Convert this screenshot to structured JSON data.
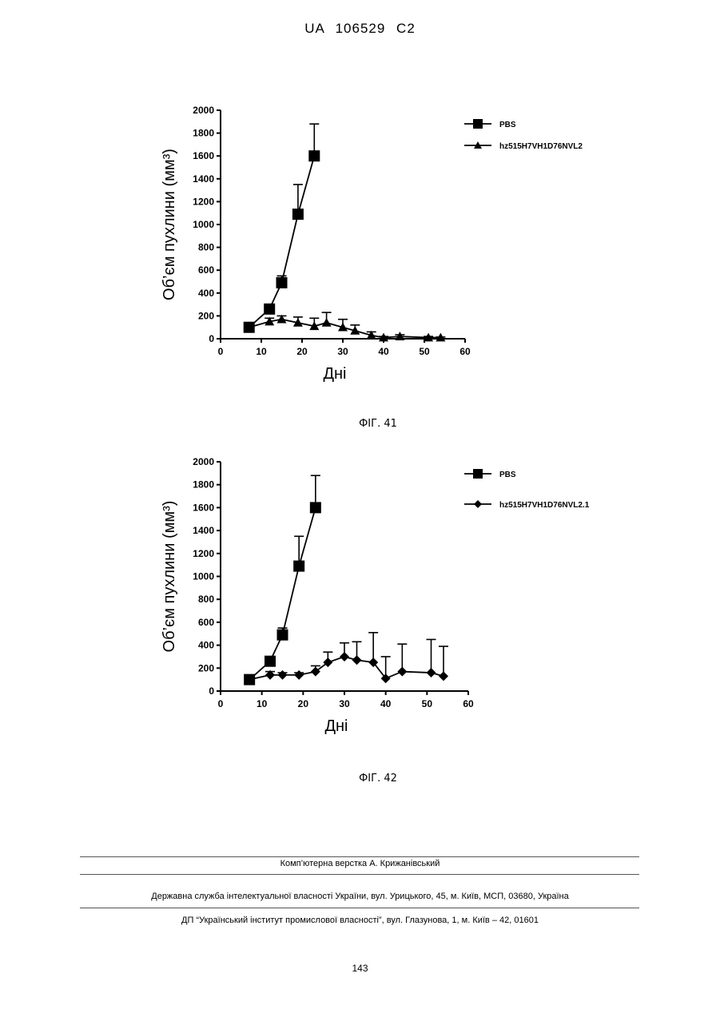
{
  "document": {
    "header": "UA 106529 C2",
    "page_number": "143",
    "footer": {
      "line1": "Комп’ютерна верстка А. Крижанівський",
      "line2": "Державна служба інтелектуальної власності України, вул. Урицького, 45, м. Київ, МСП, 03680, Україна",
      "line3": "ДП “Український інститут промислової власності”, вул. Глазунова, 1, м. Київ – 42, 01601"
    }
  },
  "chart_data": [
    {
      "type": "line",
      "caption": "ФІГ. 41",
      "xlabel": "Дні",
      "ylabel": "Об’єм пухлини (мм³)",
      "xlim": [
        0,
        60
      ],
      "ylim": [
        0,
        2000
      ],
      "xticks": [
        "0",
        "10",
        "20",
        "30",
        "40",
        "50",
        "60"
      ],
      "yticks": [
        "0",
        "200",
        "400",
        "600",
        "800",
        "1000",
        "1200",
        "1400",
        "1600",
        "1800",
        "2000"
      ],
      "legend_position": "top-right",
      "series": [
        {
          "name": "PBS",
          "marker": "square",
          "x": [
            7,
            12,
            15,
            19,
            23
          ],
          "y": [
            100,
            260,
            490,
            1090,
            1600
          ],
          "err": [
            10,
            20,
            60,
            260,
            280
          ]
        },
        {
          "name": "hz515H7VH1D76NVL2",
          "marker": "triangle",
          "x": [
            7,
            12,
            15,
            19,
            23,
            26,
            30,
            33,
            37,
            40,
            44,
            51,
            54
          ],
          "y": [
            100,
            150,
            170,
            140,
            110,
            140,
            100,
            70,
            30,
            10,
            20,
            10,
            10
          ],
          "err": [
            10,
            30,
            30,
            50,
            70,
            90,
            70,
            50,
            30,
            10,
            15,
            10,
            5
          ]
        }
      ]
    },
    {
      "type": "line",
      "caption": "ФІГ. 42",
      "xlabel": "Дні",
      "ylabel": "Об’єм пухлини (мм³)",
      "xlim": [
        0,
        60
      ],
      "ylim": [
        0,
        2000
      ],
      "xticks": [
        "0",
        "10",
        "20",
        "30",
        "40",
        "50",
        "60"
      ],
      "yticks": [
        "0",
        "200",
        "400",
        "600",
        "800",
        "1000",
        "1200",
        "1400",
        "1600",
        "1800",
        "2000"
      ],
      "legend_position": "top-right",
      "series": [
        {
          "name": "PBS",
          "marker": "square",
          "x": [
            7,
            12,
            15,
            19,
            23
          ],
          "y": [
            100,
            260,
            490,
            1090,
            1600
          ],
          "err": [
            10,
            20,
            60,
            260,
            280
          ]
        },
        {
          "name": "hz515H7VH1D76NVL2.1",
          "marker": "diamond",
          "x": [
            7,
            12,
            15,
            19,
            23,
            26,
            30,
            33,
            37,
            40,
            44,
            51,
            54
          ],
          "y": [
            100,
            140,
            140,
            140,
            170,
            250,
            300,
            270,
            250,
            110,
            170,
            160,
            130
          ],
          "err": [
            10,
            30,
            20,
            20,
            50,
            90,
            120,
            160,
            260,
            190,
            240,
            290,
            260
          ]
        }
      ]
    }
  ]
}
